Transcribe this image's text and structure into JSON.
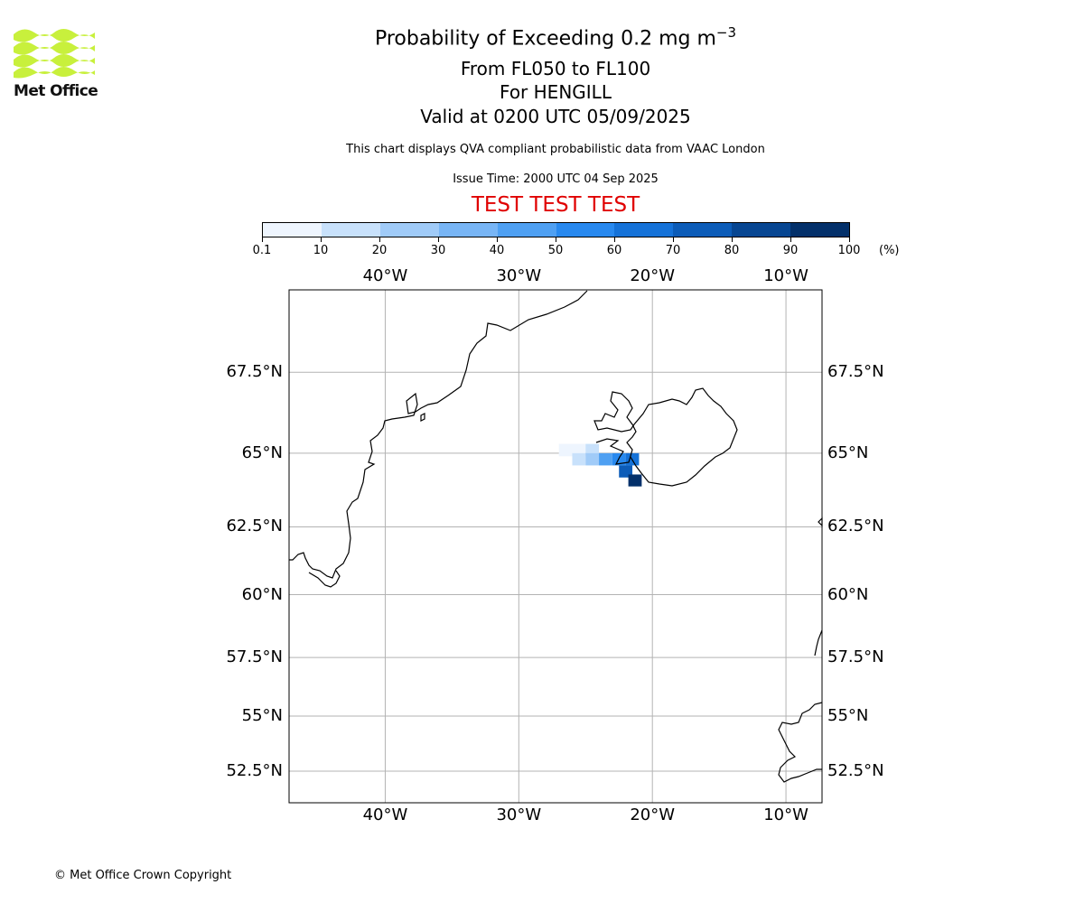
{
  "branding": {
    "logo_text": "Met Office"
  },
  "header": {
    "title_main": "Probability of Exceeding 0.2 mg m",
    "title_unit_exponent": "−3",
    "flight_levels": "From FL050 to FL100",
    "volcano": "For HENGILL",
    "valid_time": "Valid at 0200 UTC 05/09/2025",
    "description": "This chart displays QVA compliant probabilistic data from VAAC London",
    "issue_time": "Issue Time: 2000 UTC 04 Sep 2025",
    "test_banner": "TEST TEST TEST"
  },
  "colorbar": {
    "unit": "(%)",
    "tick_labels": [
      "0.1",
      "10",
      "20",
      "30",
      "40",
      "50",
      "60",
      "70",
      "80",
      "90",
      "100"
    ],
    "colors": [
      "#eef5fe",
      "#c8e1fb",
      "#a0cbf8",
      "#78b5f5",
      "#4fa0f2",
      "#2889ef",
      "#1572d8",
      "#0c5cb8",
      "#074692",
      "#03306a"
    ]
  },
  "map": {
    "lon_labels": [
      "40°W",
      "30°W",
      "20°W",
      "10°W"
    ],
    "lat_labels": [
      "67.5°N",
      "65°N",
      "62.5°N",
      "60°N",
      "57.5°N",
      "55°N",
      "52.5°N"
    ],
    "lon_values": [
      -40,
      -30,
      -20,
      -10
    ],
    "lat_values": [
      67.5,
      65,
      62.5,
      60,
      57.5,
      55,
      52.5
    ],
    "extent": {
      "lon_min": -47.2,
      "lon_max": -7.3,
      "lat_min": 51.0,
      "lat_max": 69.8
    },
    "plume_probability_cells": [
      {
        "lon": -26.5,
        "lat": 65.1,
        "prob": 5
      },
      {
        "lon": -25.5,
        "lat": 65.1,
        "prob": 8
      },
      {
        "lon": -24.5,
        "lat": 65.1,
        "prob": 12
      },
      {
        "lon": -25.5,
        "lat": 64.8,
        "prob": 15
      },
      {
        "lon": -24.5,
        "lat": 64.8,
        "prob": 25
      },
      {
        "lon": -23.5,
        "lat": 64.8,
        "prob": 40
      },
      {
        "lon": -22.5,
        "lat": 64.8,
        "prob": 55
      },
      {
        "lon": -21.5,
        "lat": 64.8,
        "prob": 60
      },
      {
        "lon": -22.0,
        "lat": 64.4,
        "prob": 75
      },
      {
        "lon": -21.3,
        "lat": 64.1,
        "prob": 90
      }
    ]
  },
  "footer": {
    "copyright": "© Met Office Crown Copyright"
  }
}
